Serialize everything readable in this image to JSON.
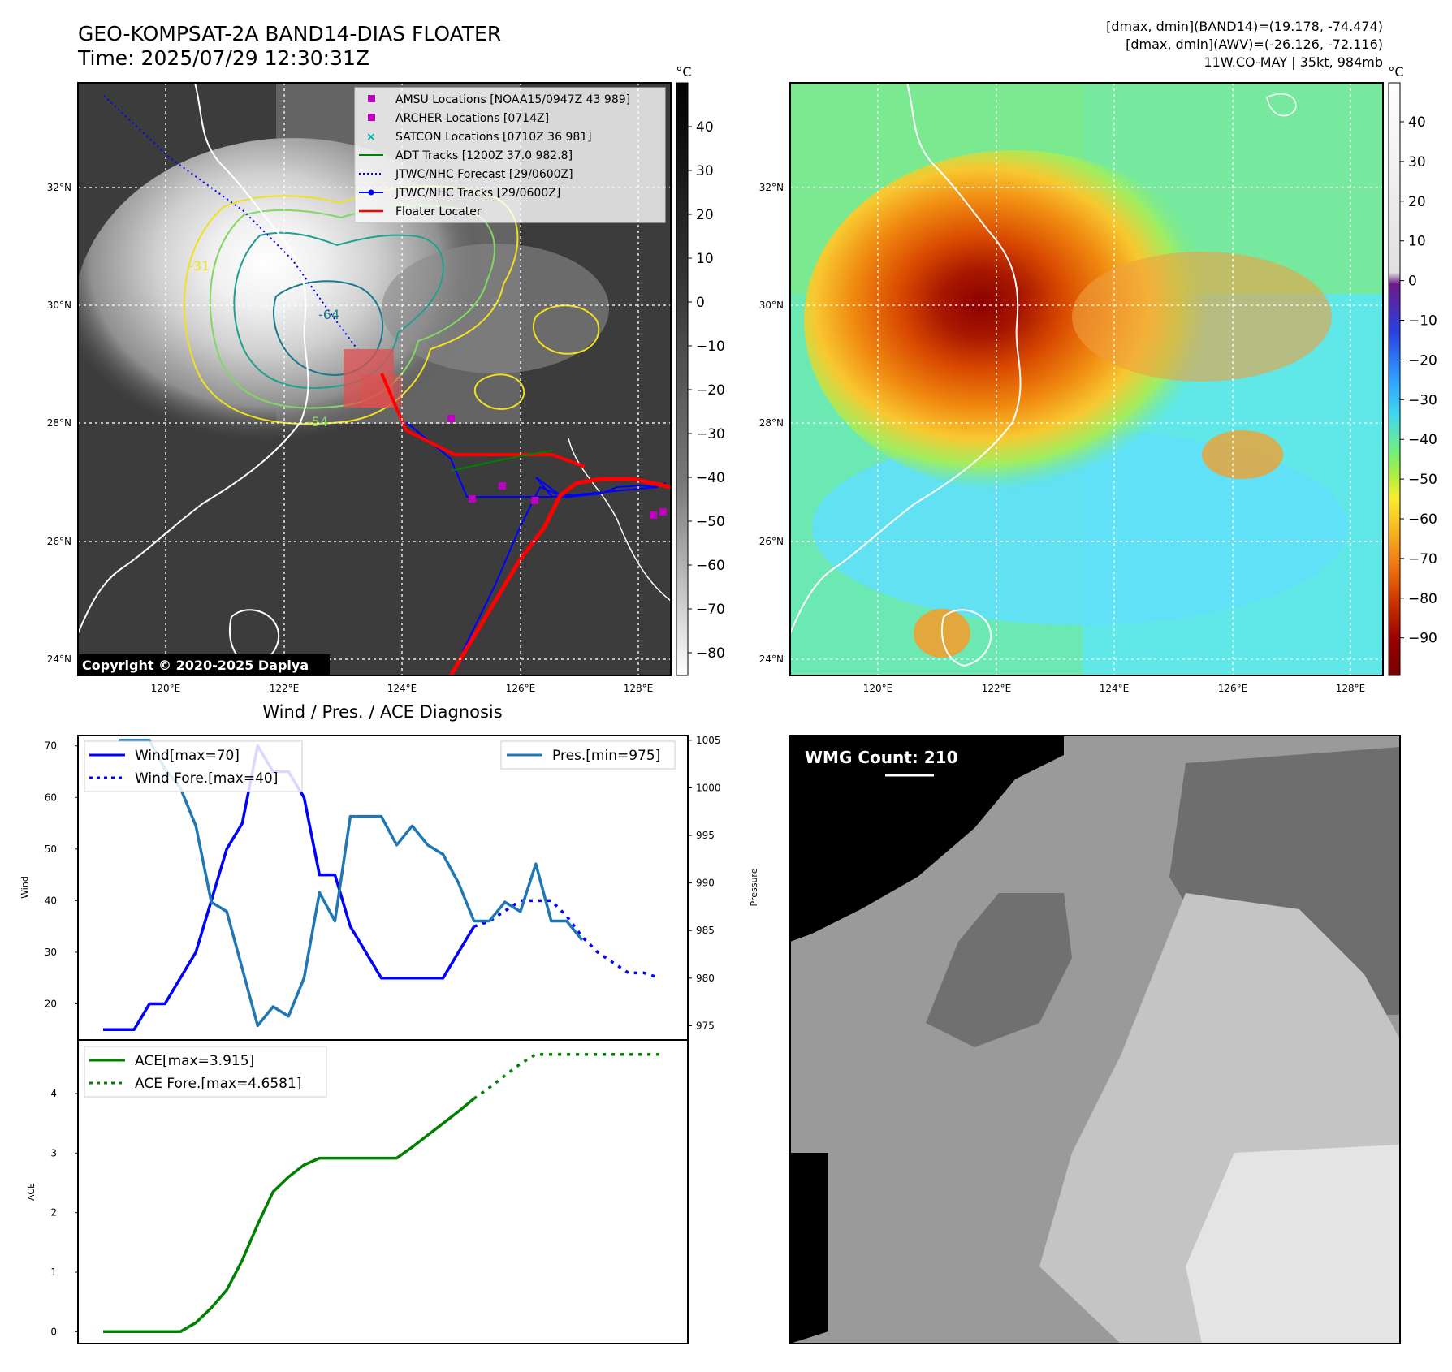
{
  "header": {
    "title_line1": "GEO-KOMPSAT-2A BAND14-DIAS FLOATER",
    "title_line2": "Time: 2025/07/29 12:30:31Z",
    "right_line1": "[dmax, dmin](BAND14)=(19.178, -74.474)",
    "right_line2": "[dmax, dmin](AWV)=(-26.126, -72.116)",
    "right_line3": "11W.CO-MAY | 35kt, 984mb"
  },
  "map_panel": {
    "lat_labels": [
      "32°N",
      "30°N",
      "28°N",
      "26°N",
      "24°N"
    ],
    "lon_labels": [
      "120°E",
      "122°E",
      "124°E",
      "126°E",
      "128°E"
    ],
    "copyright": "Copyright © 2020-2025 Dapiya",
    "contour_labels": [
      "-31",
      "-54",
      "-64"
    ],
    "legend": [
      {
        "label": "AMSU Locations [NOAA15/0947Z 43 989]",
        "color": "#c000c0",
        "marker": "square"
      },
      {
        "label": "ARCHER Locations [0714Z]",
        "color": "#c000c0",
        "marker": "square"
      },
      {
        "label": "SATCON Locations [0710Z 36 981]",
        "color": "#00b0b0",
        "marker": "x"
      },
      {
        "label": "ADT Tracks [1200Z 37.0 982.8]",
        "color": "#008000",
        "marker": "line"
      },
      {
        "label": "JTWC/NHC Forecast [29/0600Z]",
        "color": "#0000ff",
        "marker": "dotted"
      },
      {
        "label": "JTWC/NHC Tracks [29/0600Z]",
        "color": "#0000ff",
        "marker": "line-dot"
      },
      {
        "label": "Floater Locater",
        "color": "#ff0000",
        "marker": "line"
      }
    ]
  },
  "colorbars": {
    "unit": "°C",
    "gray_ticks": [
      "40",
      "30",
      "20",
      "10",
      "0",
      "−10",
      "−20",
      "−30",
      "−40",
      "−50",
      "−60",
      "−70",
      "−80"
    ],
    "color_ticks": [
      "40",
      "30",
      "20",
      "10",
      "0",
      "−10",
      "−20",
      "−30",
      "−40",
      "−50",
      "−60",
      "−70",
      "−80",
      "−90"
    ]
  },
  "wmg_panel": {
    "label": "WMG Count: 210"
  },
  "chart_data": [
    {
      "type": "line",
      "title": "Wind / Pres. / ACE Diagnosis",
      "ylabel": "Wind",
      "ylabel_right": "Pressure",
      "ylim": [
        13,
        72
      ],
      "ylim_right": [
        973.5,
        1005.5
      ],
      "yticks": [
        20,
        30,
        40,
        50,
        60,
        70
      ],
      "yticks_right": [
        975,
        980,
        985,
        990,
        995,
        1000,
        1005
      ],
      "series": [
        {
          "name": "Wind[max=70]",
          "axis": "left",
          "color": "#0000ff",
          "style": "solid",
          "x": [
            0,
            1,
            2,
            3,
            4,
            5,
            6,
            7,
            8,
            9,
            10,
            11,
            12,
            13,
            14,
            15,
            16,
            17,
            18,
            19,
            20,
            21,
            22,
            23,
            24
          ],
          "values": [
            15,
            15,
            15,
            20,
            20,
            25,
            30,
            40,
            50,
            55,
            70,
            65,
            65,
            60,
            45,
            45,
            35,
            30,
            25,
            25,
            25,
            25,
            25,
            30,
            35
          ]
        },
        {
          "name": "Wind Fore.[max=40]",
          "axis": "left",
          "color": "#0000ff",
          "style": "dotted",
          "x": [
            24,
            25,
            26,
            27,
            28,
            29,
            30,
            31,
            32,
            33,
            34,
            35,
            36
          ],
          "values": [
            35,
            36,
            38,
            40,
            40,
            40,
            37,
            33,
            30,
            28,
            26,
            26,
            25
          ]
        },
        {
          "name": "Pres.[min=975]",
          "axis": "right",
          "color": "#1f77b4",
          "style": "solid",
          "x": [
            1,
            2,
            3,
            4,
            5,
            6,
            7,
            8,
            9,
            10,
            11,
            12,
            13,
            14,
            15,
            16,
            17,
            18,
            19,
            20,
            21,
            22,
            23,
            24,
            25,
            26,
            27,
            28,
            29,
            30,
            31,
            32,
            33
          ],
          "values": [
            1005,
            1005,
            1005,
            1002,
            1000,
            996,
            988,
            987,
            981,
            975,
            977,
            976,
            980,
            989,
            986,
            997,
            997,
            997,
            994,
            996,
            994,
            993,
            990,
            986,
            986,
            988,
            987,
            992,
            986,
            986,
            984,
            null,
            null
          ]
        }
      ]
    },
    {
      "type": "line",
      "ylabel": "ACE",
      "ylim": [
        -0.2,
        4.9
      ],
      "yticks": [
        0,
        1,
        2,
        3,
        4
      ],
      "series": [
        {
          "name": "ACE[max=3.915]",
          "color": "#008000",
          "style": "solid",
          "x": [
            0,
            1,
            2,
            3,
            4,
            5,
            6,
            7,
            8,
            9,
            10,
            11,
            12,
            13,
            14,
            15,
            16,
            17,
            18,
            19,
            20,
            21,
            22,
            23,
            24
          ],
          "values": [
            0,
            0,
            0,
            0,
            0,
            0,
            0.15,
            0.4,
            0.7,
            1.2,
            1.8,
            2.35,
            2.6,
            2.8,
            2.915,
            2.915,
            2.915,
            2.915,
            2.915,
            2.915,
            3.1,
            3.3,
            3.5,
            3.7,
            3.915
          ]
        },
        {
          "name": "ACE Fore.[max=4.6581]",
          "color": "#008000",
          "style": "dotted",
          "x": [
            24,
            25,
            26,
            27,
            28,
            29,
            30,
            31,
            32,
            33,
            34,
            35,
            36
          ],
          "values": [
            3.915,
            4.1,
            4.3,
            4.5,
            4.6581,
            4.6581,
            4.6581,
            4.6581,
            4.6581,
            4.6581,
            4.6581,
            4.6581,
            4.6581
          ]
        }
      ]
    }
  ]
}
